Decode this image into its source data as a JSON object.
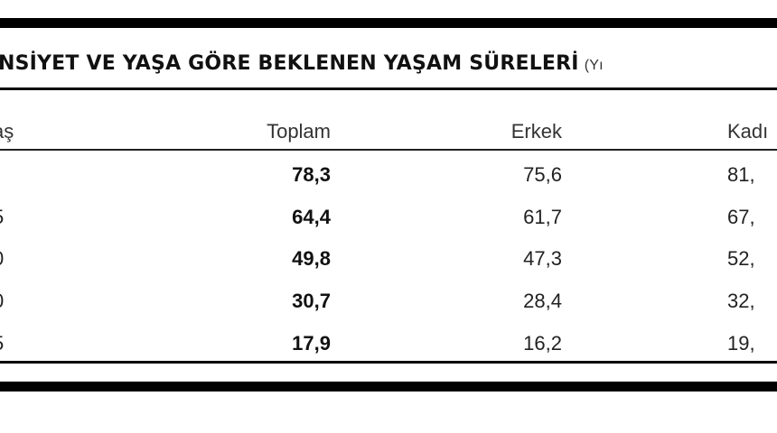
{
  "title": {
    "text": "NSİYET VE YAŞA GÖRE BEKLENEN YAŞAM SÜRELERİ",
    "unit": "(Yı"
  },
  "headers": {
    "age": "aş",
    "total": "Toplam",
    "male": "Erkek",
    "female": "Kadı"
  },
  "rows": [
    {
      "age": "",
      "total": "78,3",
      "male": "75,6",
      "female": "81,"
    },
    {
      "age": "5",
      "total": "64,4",
      "male": "61,7",
      "female": "67,"
    },
    {
      "age": "0",
      "total": "49,8",
      "male": "47,3",
      "female": "52,"
    },
    {
      "age": "0",
      "total": "30,7",
      "male": "28,4",
      "female": "32,"
    },
    {
      "age": "5",
      "total": "17,9",
      "male": "16,2",
      "female": "19,"
    }
  ]
}
